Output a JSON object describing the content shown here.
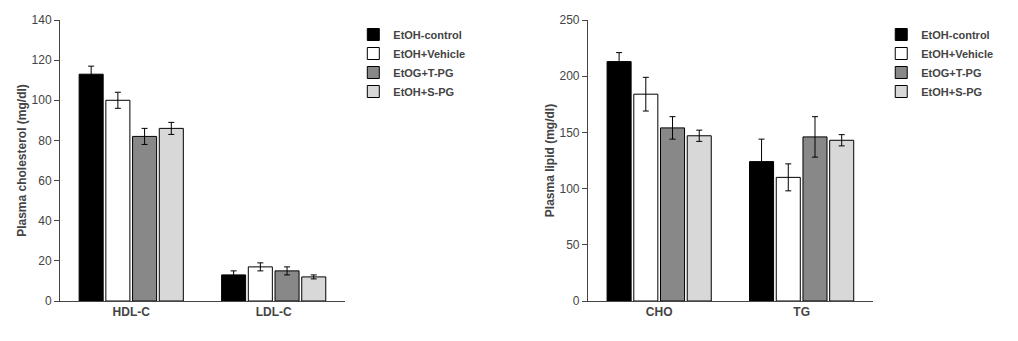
{
  "chart_data": [
    {
      "type": "bar",
      "ylabel": "Plasma cholesterol (mg/dl)",
      "categories": [
        "HDL-C",
        "LDL-C"
      ],
      "series": [
        {
          "name": "EtOH-control",
          "color": "#000000",
          "values": [
            113,
            13
          ],
          "errors": [
            4,
            2
          ]
        },
        {
          "name": "EtOH+Vehicle",
          "color": "#ffffff",
          "values": [
            100,
            17
          ],
          "errors": [
            4,
            2
          ]
        },
        {
          "name": "EtOG+T-PG",
          "color": "#888888",
          "values": [
            82,
            15
          ],
          "errors": [
            4,
            2
          ]
        },
        {
          "name": "EtOH+S-PG",
          "color": "#d8d8d8",
          "values": [
            86,
            12
          ],
          "errors": [
            3,
            1
          ]
        }
      ],
      "ylim": [
        0,
        140
      ],
      "yticks": [
        0,
        20,
        40,
        60,
        80,
        100,
        120,
        140
      ],
      "grid": false,
      "legend": "right"
    },
    {
      "type": "bar",
      "ylabel": "Plasma lipid (mg/dl)",
      "categories": [
        "CHO",
        "TG"
      ],
      "series": [
        {
          "name": "EtOH-control",
          "color": "#000000",
          "values": [
            213,
            124
          ],
          "errors": [
            8,
            20
          ]
        },
        {
          "name": "EtOH+Vehicle",
          "color": "#ffffff",
          "values": [
            184,
            110
          ],
          "errors": [
            15,
            12
          ]
        },
        {
          "name": "EtOG+T-PG",
          "color": "#888888",
          "values": [
            154,
            146
          ],
          "errors": [
            10,
            18
          ]
        },
        {
          "name": "EtOH+S-PG",
          "color": "#d8d8d8",
          "values": [
            147,
            143
          ],
          "errors": [
            5,
            5
          ]
        }
      ],
      "ylim": [
        0,
        250
      ],
      "yticks": [
        0,
        50,
        100,
        150,
        200,
        250
      ],
      "grid": false,
      "legend": "right"
    }
  ]
}
